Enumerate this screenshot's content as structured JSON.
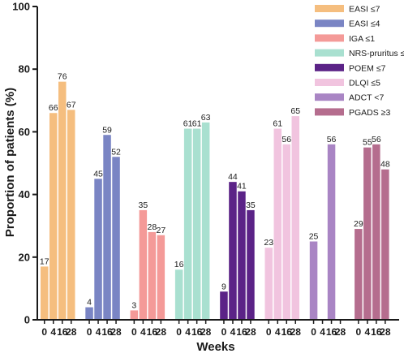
{
  "chart_data": {
    "type": "bar",
    "title": "",
    "xlabel": "Weeks",
    "ylabel": "Proportion of patients (%)",
    "ylim": [
      0,
      100
    ],
    "yticks": [
      0,
      20,
      40,
      60,
      80,
      100
    ],
    "x": [
      "0",
      "4",
      "16",
      "28"
    ],
    "legend_position": "top-right",
    "grid": false,
    "series": [
      {
        "name": "EASI ≤7",
        "color": "#f5be7f",
        "values": [
          17,
          66,
          76,
          67
        ],
        "x_labels": [
          "0",
          "4",
          "16",
          "28"
        ]
      },
      {
        "name": "EASI ≤4",
        "color": "#7a85c4",
        "values": [
          4,
          45,
          59,
          52
        ],
        "x_labels": [
          "0",
          "4",
          "16",
          "28"
        ]
      },
      {
        "name": "IGA ≤1",
        "color": "#f49a98",
        "values": [
          3,
          35,
          28,
          27
        ],
        "x_labels": [
          "0",
          "4",
          "16",
          "28"
        ]
      },
      {
        "name": "NRS-pruritus ≤4",
        "color": "#a9e0d0",
        "values": [
          16,
          61,
          61,
          63
        ],
        "x_labels": [
          "0",
          "4",
          "16",
          "28"
        ]
      },
      {
        "name": "POEM ≤7",
        "color": "#5b2387",
        "values": [
          9,
          44,
          41,
          35
        ],
        "x_labels": [
          "0",
          "4",
          "16",
          "28"
        ]
      },
      {
        "name": "DLQI ≤5",
        "color": "#f1c4df",
        "values": [
          23,
          61,
          56,
          65
        ],
        "x_labels": [
          "0",
          "4",
          "16",
          "28"
        ]
      },
      {
        "name": "ADCT <7",
        "color": "#a985c4",
        "values": [
          25,
          null,
          56,
          null
        ],
        "x_labels": [
          "0",
          "4",
          "16",
          "28"
        ]
      },
      {
        "name": "PGADS ≥3",
        "color": "#b56d8e",
        "values": [
          29,
          55,
          56,
          48
        ],
        "x_labels": [
          "0",
          "4",
          "16",
          "28"
        ]
      }
    ]
  }
}
